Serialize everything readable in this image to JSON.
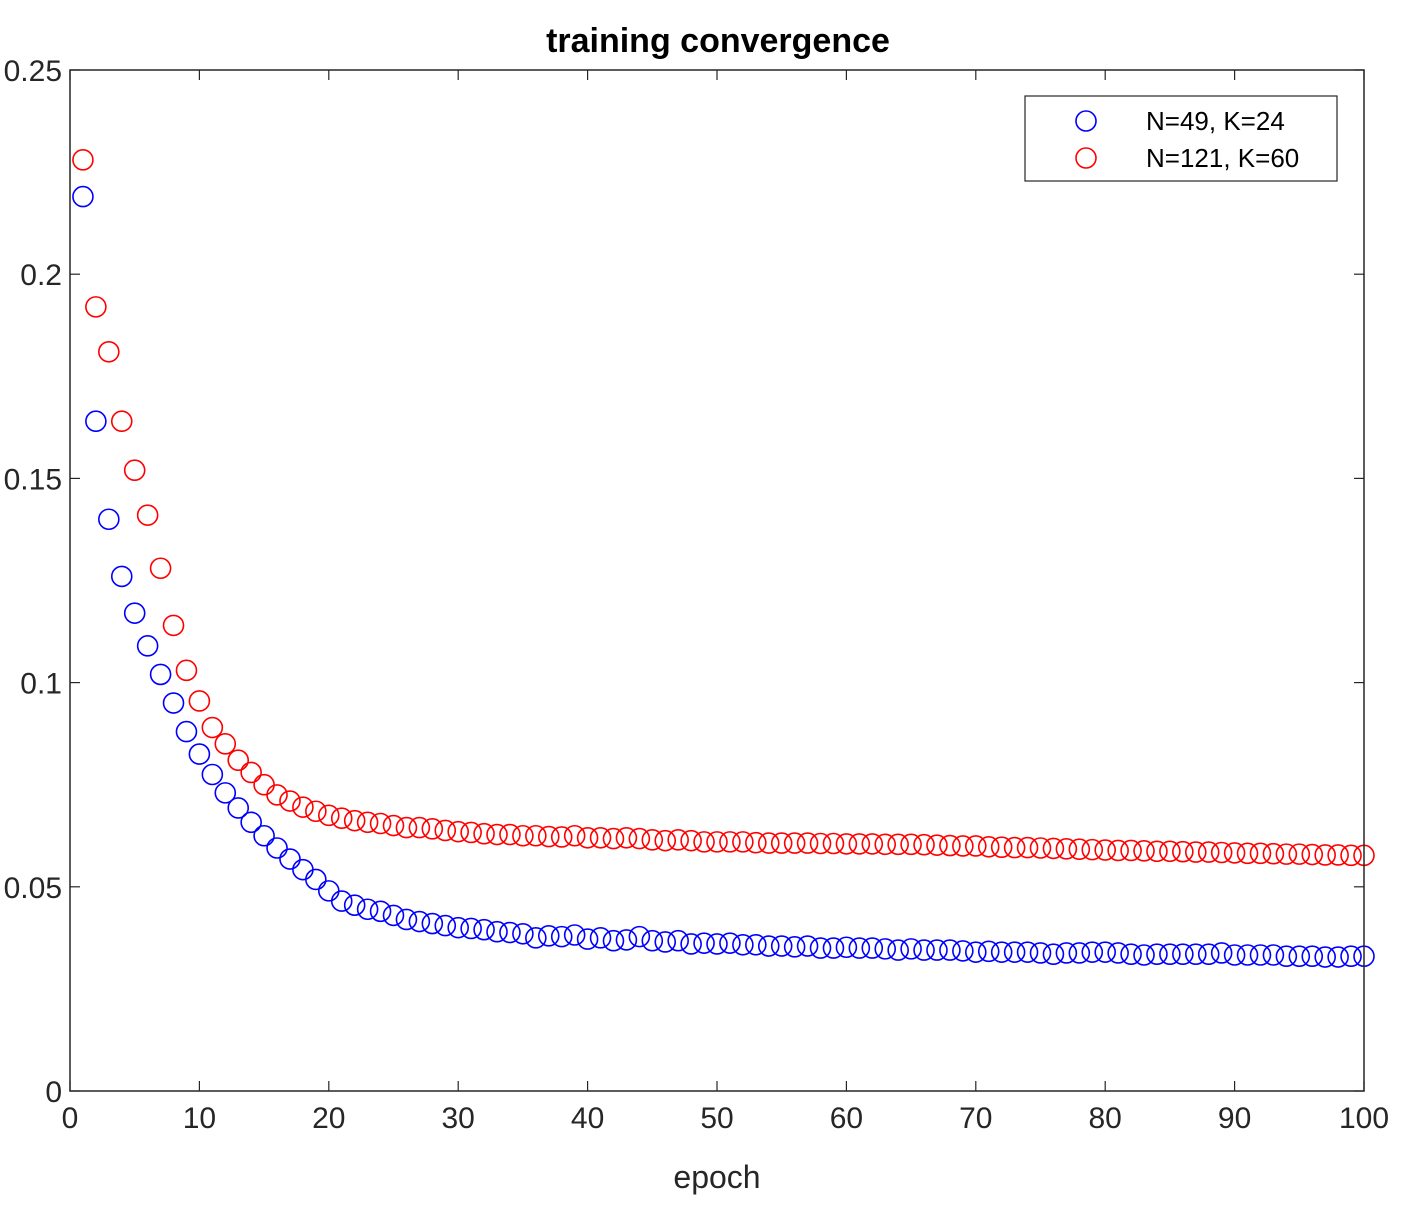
{
  "chart_data": {
    "type": "scatter",
    "title": "training convergence",
    "xlabel": "epoch",
    "ylabel": "",
    "xlim": [
      0,
      100
    ],
    "ylim": [
      0,
      0.25
    ],
    "xticks": [
      0,
      10,
      20,
      30,
      40,
      50,
      60,
      70,
      80,
      90,
      100
    ],
    "yticks": [
      0,
      0.05,
      0.1,
      0.15,
      0.2,
      0.25
    ],
    "ytick_labels": [
      "0",
      "0.05",
      "0.1",
      "0.15",
      "0.2",
      "0.25"
    ],
    "grid": false,
    "legend_position": "top-right",
    "marker": "circle-open",
    "series": [
      {
        "name": "N=49, K=24",
        "color": "#0000ff",
        "x": [
          1,
          2,
          3,
          4,
          5,
          6,
          7,
          8,
          9,
          10,
          11,
          12,
          13,
          14,
          15,
          16,
          17,
          18,
          19,
          20,
          21,
          22,
          23,
          24,
          25,
          26,
          27,
          28,
          29,
          30,
          31,
          32,
          33,
          34,
          35,
          36,
          37,
          38,
          39,
          40,
          41,
          42,
          43,
          44,
          45,
          46,
          47,
          48,
          49,
          50,
          51,
          52,
          53,
          54,
          55,
          56,
          57,
          58,
          59,
          60,
          61,
          62,
          63,
          64,
          65,
          66,
          67,
          68,
          69,
          70,
          71,
          72,
          73,
          74,
          75,
          76,
          77,
          78,
          79,
          80,
          81,
          82,
          83,
          84,
          85,
          86,
          87,
          88,
          89,
          90,
          91,
          92,
          93,
          94,
          95,
          96,
          97,
          98,
          99,
          100
        ],
        "y": [
          0.219,
          0.164,
          0.14,
          0.126,
          0.117,
          0.109,
          0.102,
          0.095,
          0.088,
          0.0825,
          0.0775,
          0.073,
          0.0693,
          0.0658,
          0.0625,
          0.0595,
          0.0568,
          0.0542,
          0.0518,
          0.049,
          0.0465,
          0.0455,
          0.0445,
          0.044,
          0.043,
          0.042,
          0.0415,
          0.041,
          0.0405,
          0.04,
          0.0398,
          0.0395,
          0.039,
          0.0388,
          0.0385,
          0.0375,
          0.038,
          0.0378,
          0.0382,
          0.0372,
          0.0375,
          0.0368,
          0.037,
          0.0378,
          0.0368,
          0.0365,
          0.0368,
          0.036,
          0.0362,
          0.036,
          0.0362,
          0.0358,
          0.0358,
          0.0355,
          0.0355,
          0.0353,
          0.0355,
          0.035,
          0.035,
          0.0352,
          0.035,
          0.035,
          0.0348,
          0.0345,
          0.0348,
          0.0345,
          0.0345,
          0.0345,
          0.0343,
          0.034,
          0.0342,
          0.034,
          0.034,
          0.034,
          0.0338,
          0.0335,
          0.0338,
          0.0338,
          0.034,
          0.034,
          0.0338,
          0.0335,
          0.0333,
          0.0335,
          0.0335,
          0.0335,
          0.0335,
          0.0335,
          0.0338,
          0.0333,
          0.0333,
          0.0333,
          0.0333,
          0.033,
          0.033,
          0.033,
          0.0328,
          0.0328,
          0.033,
          0.033
        ]
      },
      {
        "name": "N=121, K=60",
        "color": "#ff0000",
        "x": [
          1,
          2,
          3,
          4,
          5,
          6,
          7,
          8,
          9,
          10,
          11,
          12,
          13,
          14,
          15,
          16,
          17,
          18,
          19,
          20,
          21,
          22,
          23,
          24,
          25,
          26,
          27,
          28,
          29,
          30,
          31,
          32,
          33,
          34,
          35,
          36,
          37,
          38,
          39,
          40,
          41,
          42,
          43,
          44,
          45,
          46,
          47,
          48,
          49,
          50,
          51,
          52,
          53,
          54,
          55,
          56,
          57,
          58,
          59,
          60,
          61,
          62,
          63,
          64,
          65,
          66,
          67,
          68,
          69,
          70,
          71,
          72,
          73,
          74,
          75,
          76,
          77,
          78,
          79,
          80,
          81,
          82,
          83,
          84,
          85,
          86,
          87,
          88,
          89,
          90,
          91,
          92,
          93,
          94,
          95,
          96,
          97,
          98,
          99,
          100
        ],
        "y": [
          0.228,
          0.192,
          0.181,
          0.164,
          0.152,
          0.141,
          0.128,
          0.114,
          0.103,
          0.0955,
          0.089,
          0.085,
          0.081,
          0.078,
          0.075,
          0.0725,
          0.071,
          0.0695,
          0.0685,
          0.0675,
          0.0668,
          0.0662,
          0.0658,
          0.0655,
          0.065,
          0.0645,
          0.0645,
          0.0642,
          0.0638,
          0.0635,
          0.0633,
          0.063,
          0.0628,
          0.0628,
          0.0625,
          0.0625,
          0.0623,
          0.0622,
          0.0625,
          0.062,
          0.062,
          0.0618,
          0.062,
          0.0618,
          0.0615,
          0.0613,
          0.0615,
          0.0613,
          0.061,
          0.061,
          0.061,
          0.061,
          0.0608,
          0.0607,
          0.0607,
          0.0607,
          0.0607,
          0.0606,
          0.0606,
          0.0605,
          0.0605,
          0.0605,
          0.0604,
          0.0604,
          0.0604,
          0.0603,
          0.0602,
          0.0601,
          0.06,
          0.06,
          0.0598,
          0.0597,
          0.0596,
          0.0596,
          0.0595,
          0.0594,
          0.0593,
          0.0592,
          0.0591,
          0.059,
          0.0589,
          0.0589,
          0.0588,
          0.0587,
          0.0587,
          0.0586,
          0.0585,
          0.0585,
          0.0584,
          0.0583,
          0.0582,
          0.0582,
          0.0581,
          0.058,
          0.058,
          0.0579,
          0.0578,
          0.0578,
          0.0577,
          0.0577
        ]
      }
    ]
  }
}
